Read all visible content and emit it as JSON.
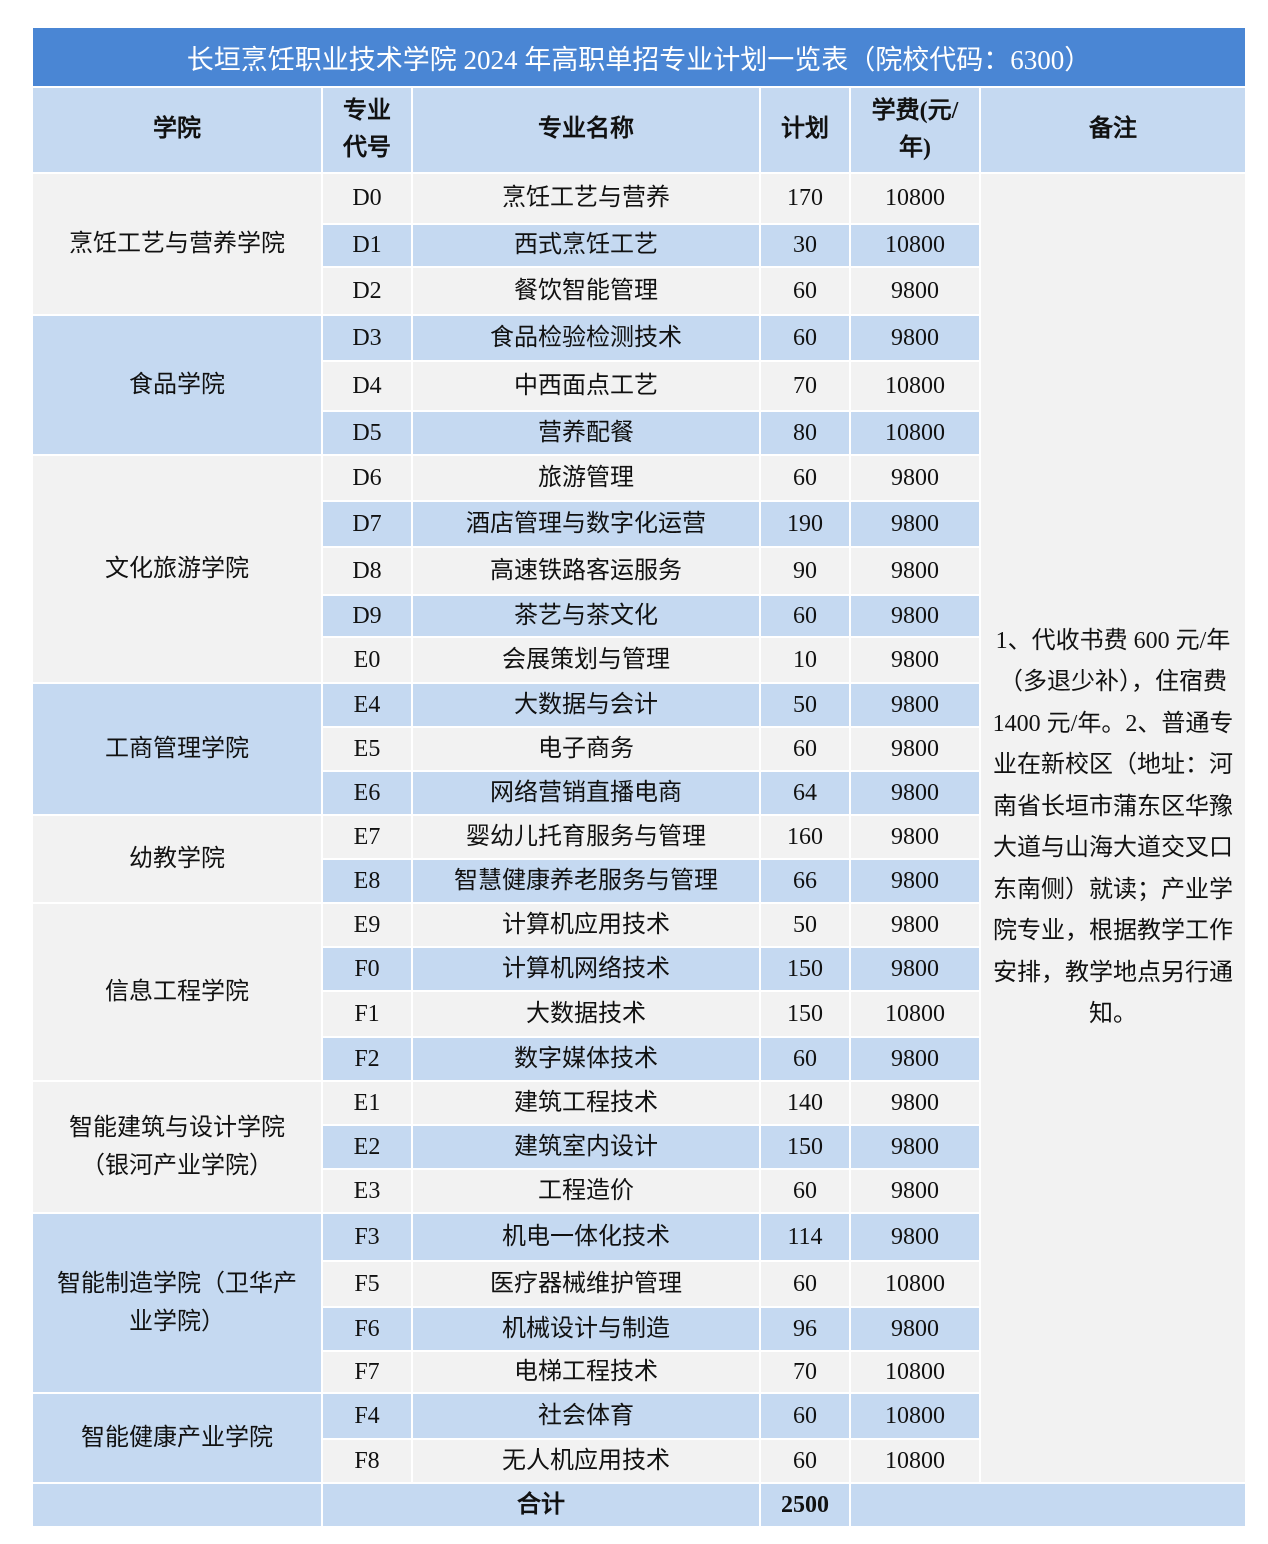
{
  "title": "长垣烹饪职业技术学院 2024 年高职单招专业计划一览表（院校代码：6300）",
  "header": {
    "college": "学院",
    "code": "专业代号",
    "major": "专业名称",
    "plan": "计划",
    "fee": "学费(元/年)",
    "note": "备注"
  },
  "colors": {
    "title_bg": "#4a86d4",
    "blue_cell": "#c5d9f1",
    "grey_cell": "#f2f2f2"
  },
  "colleges": [
    {
      "name": "烹饪工艺与营养学院",
      "shade": "grey",
      "majors": [
        {
          "code": "D0",
          "name": "烹饪工艺与营养",
          "plan": "170",
          "fee": "10800"
        },
        {
          "code": "D1",
          "name": "西式烹饪工艺",
          "plan": "30",
          "fee": "10800"
        },
        {
          "code": "D2",
          "name": "餐饮智能管理",
          "plan": "60",
          "fee": "9800"
        }
      ]
    },
    {
      "name": "食品学院",
      "shade": "blue",
      "majors": [
        {
          "code": "D3",
          "name": "食品检验检测技术",
          "plan": "60",
          "fee": "9800"
        },
        {
          "code": "D4",
          "name": "中西面点工艺",
          "plan": "70",
          "fee": "10800"
        },
        {
          "code": "D5",
          "name": "营养配餐",
          "plan": "80",
          "fee": "10800"
        }
      ]
    },
    {
      "name": "文化旅游学院",
      "shade": "grey",
      "majors": [
        {
          "code": "D6",
          "name": "旅游管理",
          "plan": "60",
          "fee": "9800"
        },
        {
          "code": "D7",
          "name": "酒店管理与数字化运营",
          "plan": "190",
          "fee": "9800"
        },
        {
          "code": "D8",
          "name": "高速铁路客运服务",
          "plan": "90",
          "fee": "9800"
        },
        {
          "code": "D9",
          "name": "茶艺与茶文化",
          "plan": "60",
          "fee": "9800"
        },
        {
          "code": "E0",
          "name": "会展策划与管理",
          "plan": "10",
          "fee": "9800"
        }
      ]
    },
    {
      "name": "工商管理学院",
      "shade": "blue",
      "majors": [
        {
          "code": "E4",
          "name": "大数据与会计",
          "plan": "50",
          "fee": "9800"
        },
        {
          "code": "E5",
          "name": "电子商务",
          "plan": "60",
          "fee": "9800"
        },
        {
          "code": "E6",
          "name": "网络营销直播电商",
          "plan": "64",
          "fee": "9800"
        }
      ]
    },
    {
      "name": "幼教学院",
      "shade": "grey",
      "majors": [
        {
          "code": "E7",
          "name": "婴幼儿托育服务与管理",
          "plan": "160",
          "fee": "9800"
        },
        {
          "code": "E8",
          "name": "智慧健康养老服务与管理",
          "plan": "66",
          "fee": "9800"
        }
      ]
    },
    {
      "name": "信息工程学院",
      "shade": "grey",
      "majors": [
        {
          "code": "E9",
          "name": "计算机应用技术",
          "plan": "50",
          "fee": "9800"
        },
        {
          "code": "F0",
          "name": "计算机网络技术",
          "plan": "150",
          "fee": "9800"
        },
        {
          "code": "F1",
          "name": "大数据技术",
          "plan": "150",
          "fee": "10800"
        },
        {
          "code": "F2",
          "name": "数字媒体技术",
          "plan": "60",
          "fee": "9800"
        }
      ]
    },
    {
      "name": "智能建筑与设计学院（银河产业学院）",
      "shade": "grey",
      "majors": [
        {
          "code": "E1",
          "name": "建筑工程技术",
          "plan": "140",
          "fee": "9800"
        },
        {
          "code": "E2",
          "name": "建筑室内设计",
          "plan": "150",
          "fee": "9800"
        },
        {
          "code": "E3",
          "name": "工程造价",
          "plan": "60",
          "fee": "9800"
        }
      ]
    },
    {
      "name": "智能制造学院（卫华产业学院）",
      "shade": "blue",
      "majors": [
        {
          "code": "F3",
          "name": "机电一体化技术",
          "plan": "114",
          "fee": "9800"
        },
        {
          "code": "F5",
          "name": "医疗器械维护管理",
          "plan": "60",
          "fee": "10800"
        },
        {
          "code": "F6",
          "name": "机械设计与制造",
          "plan": "96",
          "fee": "9800"
        },
        {
          "code": "F7",
          "name": "电梯工程技术",
          "plan": "70",
          "fee": "10800"
        }
      ]
    },
    {
      "name": "智能健康产业学院",
      "shade": "blue",
      "majors": [
        {
          "code": "F4",
          "name": "社会体育",
          "plan": "60",
          "fee": "10800"
        },
        {
          "code": "F8",
          "name": "无人机应用技术",
          "plan": "60",
          "fee": "10800"
        }
      ]
    }
  ],
  "note": "1、代收书费 600 元/年（多退少补），住宿费 1400 元/年。2、普通专业在新校区（地址：河南省长垣市蒲东区华豫大道与山海大道交叉口东南侧）就读；产业学院专业，根据教学工作安排，教学地点另行通知。",
  "total": {
    "label": "合计",
    "plan": "2500"
  }
}
